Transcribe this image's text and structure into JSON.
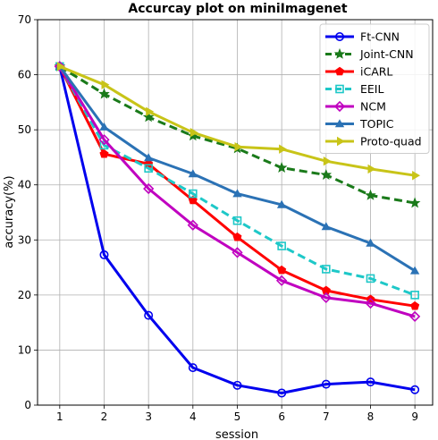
{
  "chart_data": {
    "type": "line",
    "title": "Accurcay plot on miniImagenet",
    "xlabel": "session",
    "ylabel": "accuracy(%)",
    "x": [
      1,
      2,
      3,
      4,
      5,
      6,
      7,
      8,
      9
    ],
    "xlim": [
      0.5,
      9.4
    ],
    "ylim": [
      0,
      70
    ],
    "xticks": [
      1,
      2,
      3,
      4,
      5,
      6,
      7,
      8,
      9
    ],
    "yticks": [
      0,
      10,
      20,
      30,
      40,
      50,
      60,
      70
    ],
    "grid": true,
    "legend_position": "top-right",
    "series": [
      {
        "name": "Ft-CNN",
        "color": "#0000ee",
        "dash": "solid",
        "marker": "circle",
        "values": [
          61.5,
          27.3,
          16.3,
          6.8,
          3.6,
          2.2,
          3.8,
          4.2,
          2.8
        ]
      },
      {
        "name": "Joint-CNN",
        "color": "#1a7a1a",
        "dash": "dashed",
        "marker": "star",
        "values": [
          61.5,
          56.5,
          52.3,
          48.9,
          46.6,
          43.1,
          41.8,
          38.1,
          36.7
        ]
      },
      {
        "name": "iCARL",
        "color": "#ff0000",
        "dash": "solid",
        "marker": "pentagon",
        "values": [
          61.5,
          45.6,
          43.8,
          37.2,
          30.5,
          24.5,
          20.8,
          19.2,
          18.0
        ]
      },
      {
        "name": "EEIL",
        "color": "#1ec8c8",
        "dash": "dashed",
        "marker": "square",
        "values": [
          61.5,
          47.2,
          43.0,
          38.4,
          33.5,
          28.9,
          24.7,
          23.0,
          20.0
        ]
      },
      {
        "name": "NCM",
        "color": "#c000c0",
        "dash": "solid",
        "marker": "diamond",
        "values": [
          61.5,
          48.2,
          39.3,
          32.7,
          27.7,
          22.6,
          19.5,
          18.5,
          16.1
        ]
      },
      {
        "name": "TOPIC",
        "color": "#2b72b5",
        "dash": "solid",
        "marker": "triangle",
        "values": [
          61.5,
          50.5,
          44.9,
          42.0,
          38.4,
          36.4,
          32.4,
          29.4,
          24.4
        ]
      },
      {
        "name": "Proto-quad",
        "color": "#c8c418",
        "dash": "solid",
        "marker": "triangle-right",
        "values": [
          61.5,
          58.2,
          53.3,
          49.5,
          46.9,
          46.5,
          44.3,
          42.9,
          41.7
        ]
      }
    ]
  }
}
